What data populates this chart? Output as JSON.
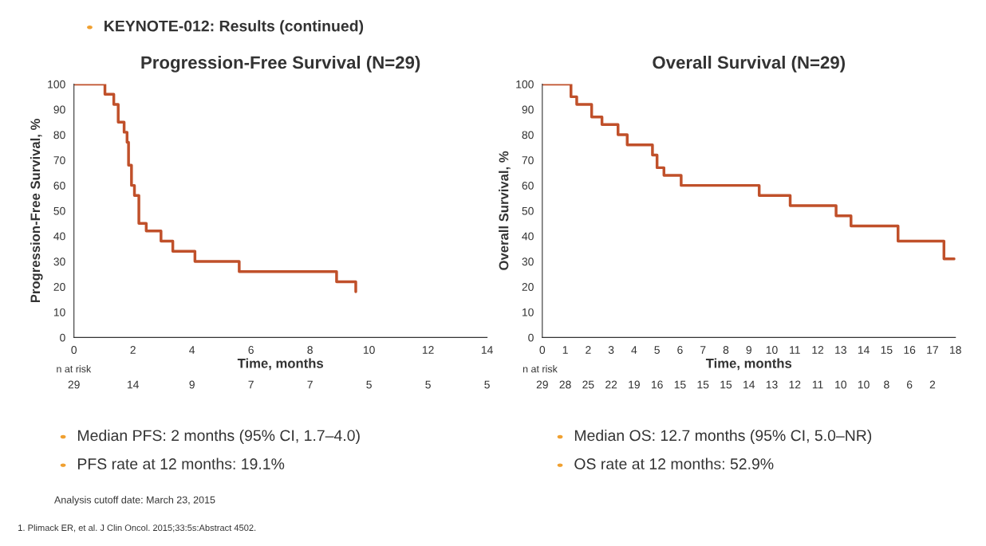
{
  "chart_data": [
    {
      "type": "step",
      "title": "Progression-Free Survival (N=29)",
      "xlabel": "Time, months",
      "ylabel": "Progression-Free Survival, %",
      "series": [
        {
          "color": "#c0502a",
          "x": [
            0,
            1.05,
            1.35,
            1.5,
            1.7,
            1.8,
            1.85,
            1.95,
            2.05,
            2.2,
            2.45,
            2.95,
            3.35,
            4.1,
            5.6,
            8.9,
            9.55
          ],
          "values": [
            100,
            96,
            92,
            85,
            81,
            77,
            68,
            60,
            56,
            45,
            42,
            38,
            34,
            30,
            26,
            22,
            18
          ]
        }
      ],
      "xlim": [
        0,
        14
      ],
      "xticks": [
        0,
        2,
        4,
        6,
        8,
        10,
        12,
        14
      ],
      "ylim": [
        0,
        100
      ],
      "yticks": [
        0,
        10,
        20,
        30,
        40,
        50,
        60,
        70,
        80,
        90,
        100
      ],
      "grid": false,
      "legend": false,
      "annotations": [
        "KEYNOTE-012: Results (continued)",
        "Median PFS: 2 months (95% CI, 1.7–4.0)",
        "PFS rate at 12 months: 19.1%",
        "Analysis cutoff date: March 23, 2015",
        "1. Plimack ER, et al. J Clin Oncol. 2015;33:5s:Abstract 4502.",
        "n at risk",
        "29",
        "14",
        "9",
        "7",
        "7",
        "5",
        "5",
        "5"
      ]
    },
    {
      "type": "step",
      "title": "Overall Survival (N=29)",
      "xlabel": "Time, months",
      "ylabel": "Overall Survival, %",
      "series": [
        {
          "color": "#c0502a",
          "x": [
            0,
            1.25,
            1.5,
            2.15,
            2.6,
            3.3,
            3.7,
            4.8,
            5.0,
            5.3,
            6.05,
            9.45,
            10.8,
            12.8,
            13.45,
            15.5,
            17.5,
            17.95
          ],
          "values": [
            100,
            95,
            92,
            87,
            84,
            80,
            76,
            72,
            67,
            64,
            60,
            56,
            52,
            48,
            44,
            38,
            31,
            31
          ]
        }
      ],
      "xlim": [
        0,
        18
      ],
      "xticks": [
        0,
        1,
        2,
        3,
        4,
        5,
        6,
        7,
        8,
        9,
        10,
        11,
        12,
        13,
        14,
        15,
        16,
        17,
        18
      ],
      "ylim": [
        0,
        100
      ],
      "yticks": [
        0,
        10,
        20,
        30,
        40,
        50,
        60,
        70,
        80,
        90,
        100
      ],
      "grid": false,
      "legend": false,
      "annotations": [
        "Median OS: 12.7 months (95% CI, 5.0–NR)",
        "OS rate at 12 months: 52.9%",
        "n at risk",
        "29",
        "28",
        "25",
        "22",
        "19",
        "16",
        "15",
        "15",
        "15",
        "14",
        "13",
        "12",
        "11",
        "10",
        "10",
        "8",
        "6",
        "2"
      ]
    }
  ]
}
